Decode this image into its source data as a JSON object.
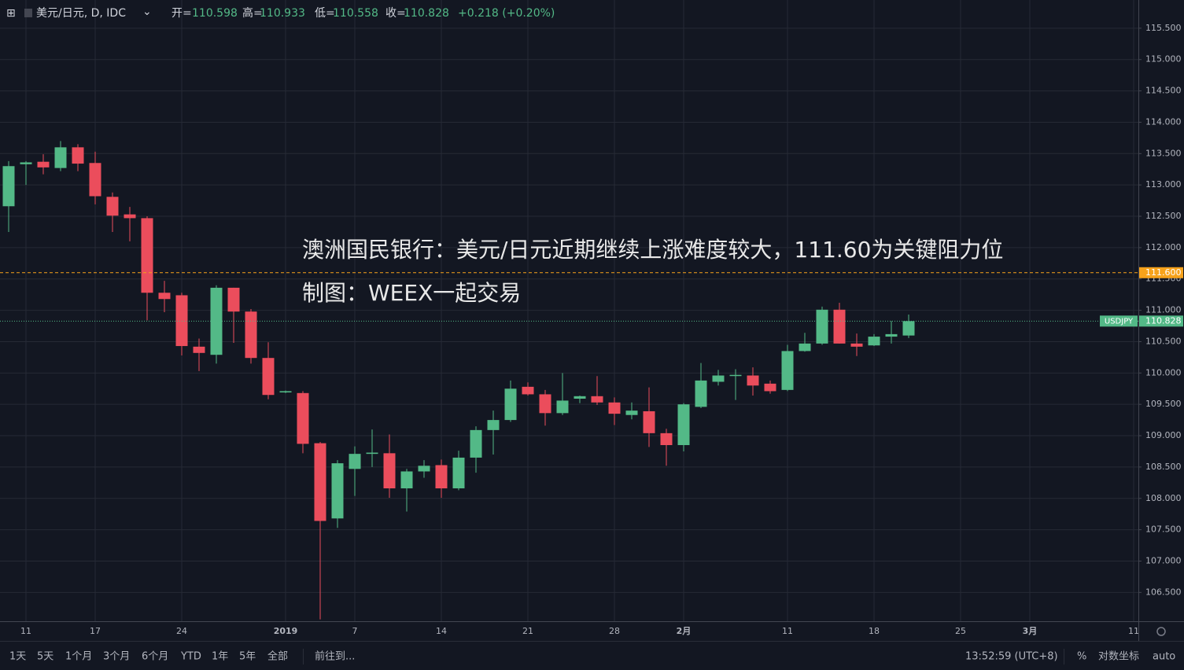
{
  "chart_data": {
    "type": "candlestick",
    "symbol": "美元/日元, D, IDC",
    "categories": [
      null,
      "11",
      null,
      null,
      null,
      "17",
      null,
      null,
      null,
      null,
      "24",
      null,
      null,
      null,
      null,
      null,
      "2019",
      null,
      null,
      null,
      "7",
      null,
      null,
      null,
      null,
      "14",
      null,
      null,
      null,
      null,
      "21",
      null,
      null,
      null,
      null,
      "28",
      null,
      null,
      null,
      "2月",
      null,
      null,
      null,
      null,
      null,
      "11",
      null,
      null,
      null,
      null,
      "18",
      null,
      null,
      null,
      null,
      "25",
      null,
      null,
      null,
      "3月",
      null,
      null,
      null,
      null,
      null,
      "11"
    ],
    "open": [
      112.66,
      113.33,
      113.37,
      113.27,
      113.6,
      113.35,
      112.81,
      112.53,
      112.47,
      111.28,
      111.24,
      110.42,
      110.29,
      111.36,
      110.98,
      110.24,
      109.69,
      109.68,
      108.88,
      107.68,
      108.47,
      108.71,
      108.72,
      108.16,
      108.43,
      108.53,
      108.16,
      108.65,
      109.09,
      109.25,
      109.78,
      109.66,
      109.36,
      109.59,
      109.63,
      109.53,
      109.33,
      109.39,
      109.04,
      108.85,
      109.46,
      109.86,
      109.96,
      109.96,
      109.83,
      109.73,
      110.35,
      110.47,
      111.01,
      110.47,
      110.44,
      110.58,
      110.598,
      null,
      null,
      null,
      null,
      null,
      null,
      null,
      null,
      null,
      null,
      null,
      null,
      null
    ],
    "high": [
      113.38,
      113.38,
      113.49,
      113.7,
      113.65,
      113.53,
      112.88,
      112.65,
      112.5,
      111.47,
      111.28,
      110.55,
      111.4,
      111.36,
      111.02,
      110.49,
      109.72,
      109.71,
      108.9,
      108.61,
      108.83,
      109.1,
      109.02,
      108.47,
      108.61,
      108.62,
      108.76,
      109.15,
      109.4,
      109.88,
      109.85,
      109.73,
      110.0,
      109.64,
      109.95,
      109.61,
      109.53,
      109.77,
      109.11,
      109.52,
      110.16,
      110.05,
      110.06,
      110.09,
      109.88,
      110.45,
      110.64,
      111.06,
      111.12,
      110.63,
      110.62,
      110.83,
      110.933,
      null,
      null,
      null,
      null,
      null,
      null,
      null,
      null,
      null,
      null,
      null,
      null,
      null
    ],
    "low": [
      112.25,
      113.0,
      113.17,
      113.22,
      113.22,
      112.69,
      112.25,
      112.1,
      110.84,
      110.97,
      110.28,
      110.03,
      110.15,
      110.48,
      110.15,
      109.58,
      109.68,
      108.72,
      106.07,
      107.53,
      108.04,
      108.5,
      108.01,
      107.79,
      108.33,
      108.01,
      108.13,
      108.41,
      108.7,
      109.22,
      109.64,
      109.16,
      109.33,
      109.52,
      109.49,
      109.17,
      109.26,
      108.82,
      108.52,
      108.75,
      109.44,
      109.8,
      109.57,
      109.64,
      109.67,
      109.71,
      110.34,
      110.45,
      110.47,
      110.27,
      110.43,
      110.47,
      110.558,
      null,
      null,
      null,
      null,
      null,
      null,
      null,
      null,
      null,
      null,
      null,
      null,
      null
    ],
    "close": [
      113.3,
      113.36,
      113.28,
      113.6,
      113.34,
      112.82,
      112.51,
      112.47,
      111.28,
      111.18,
      110.43,
      110.32,
      111.36,
      110.98,
      110.24,
      109.65,
      109.71,
      108.87,
      107.64,
      108.56,
      108.71,
      108.73,
      108.16,
      108.43,
      108.52,
      108.16,
      108.65,
      109.09,
      109.25,
      109.75,
      109.66,
      109.36,
      109.56,
      109.63,
      109.53,
      109.35,
      109.4,
      109.04,
      108.85,
      109.5,
      109.88,
      109.96,
      109.97,
      109.8,
      109.71,
      110.35,
      110.47,
      111.01,
      110.47,
      110.42,
      110.58,
      110.62,
      110.828,
      null,
      null,
      null,
      null,
      null,
      null,
      null,
      null,
      null,
      null,
      null,
      null,
      null
    ],
    "up_color": "#53b987",
    "down_color": "#eb4d5c",
    "ylim": [
      106.04,
      115.95
    ],
    "yticks": [
      {
        "value": 106.5,
        "label": "106.500"
      },
      {
        "value": 107,
        "label": "107.000"
      },
      {
        "value": 107.5,
        "label": "107.500"
      },
      {
        "value": 108,
        "label": "108.000"
      },
      {
        "value": 108.5,
        "label": "108.500"
      },
      {
        "value": 109,
        "label": "109.000"
      },
      {
        "value": 109.5,
        "label": "109.500"
      },
      {
        "value": 110,
        "label": "110.000"
      },
      {
        "value": 110.5,
        "label": "110.500"
      },
      {
        "value": 111,
        "label": "111.000"
      },
      {
        "value": 111.5,
        "label": "111.500"
      },
      {
        "value": 112,
        "label": "112.000"
      },
      {
        "value": 112.5,
        "label": "112.500"
      },
      {
        "value": 113,
        "label": "113.000"
      },
      {
        "value": 113.5,
        "label": "113.500"
      },
      {
        "value": 114,
        "label": "114.000"
      },
      {
        "value": 114.5,
        "label": "114.500"
      },
      {
        "value": 115,
        "label": "115.000"
      },
      {
        "value": 115.5,
        "label": "115.500"
      }
    ],
    "grid": true,
    "hline": {
      "value": 111.6,
      "label": "111.600",
      "color": "#f7a21b"
    },
    "last_price_name": "USDJPY",
    "annotations": [
      "澳洲国民银行：美元/日元近期继续上涨难度较大，111.60为关键阻力位",
      "制图：WEEX一起交易"
    ]
  },
  "header": {
    "open_label": "开=",
    "high_label": "高=",
    "low_label": "低=",
    "close_label": "收=",
    "change": "+0.218 (+0.20%)"
  },
  "toolbar": {
    "ranges": [
      "1天",
      "5天",
      "1个月",
      "3个月",
      "6个月",
      "YTD",
      "1年",
      "5年",
      "全部"
    ],
    "goto": "前往到...",
    "time": "13:52:59 (UTC+8)",
    "percent": "%",
    "log": "对数坐标",
    "auto": "auto"
  }
}
